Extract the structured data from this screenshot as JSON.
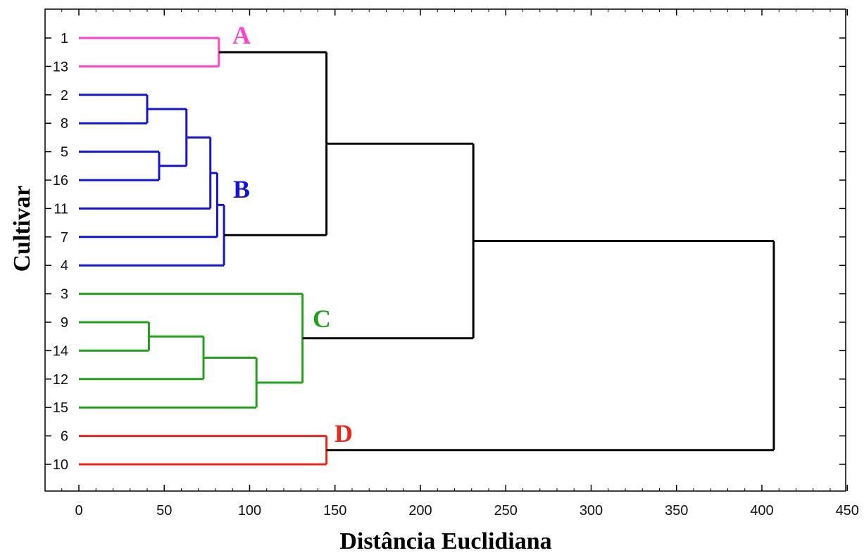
{
  "chart_data": {
    "type": "dendrogram",
    "orientation": "horizontal",
    "xlabel": "Distância Euclidiana",
    "ylabel": "Cultivar",
    "xlim": [
      -20,
      450
    ],
    "xticks": [
      0,
      50,
      100,
      150,
      200,
      250,
      300,
      350,
      400,
      450
    ],
    "leaves": [
      "1",
      "13",
      "2",
      "8",
      "5",
      "16",
      "11",
      "7",
      "4",
      "3",
      "9",
      "14",
      "12",
      "15",
      "6",
      "10"
    ],
    "colors": {
      "A": "#ff44cc",
      "B": "#1414d2",
      "C": "#22a01c",
      "D": "#e8281c",
      "link": "#000000"
    },
    "merges": [
      {
        "children": [
          "2",
          "8"
        ],
        "height": 40,
        "cluster": "B"
      },
      {
        "children": [
          "5",
          "16"
        ],
        "height": 47,
        "cluster": "B"
      },
      {
        "children": [
          "9",
          "14"
        ],
        "height": 41,
        "cluster": "C"
      },
      {
        "children": [
          "2-8",
          "5-16"
        ],
        "height": 63,
        "cluster": "B"
      },
      {
        "children": [
          "2-8-5-16",
          "11"
        ],
        "height": 77,
        "cluster": "B"
      },
      {
        "children": [
          "B1",
          "7"
        ],
        "height": 81,
        "cluster": "B"
      },
      {
        "children": [
          "B2",
          "4"
        ],
        "height": 85,
        "cluster": "B"
      },
      {
        "children": [
          "1",
          "13"
        ],
        "height": 82,
        "cluster": "A"
      },
      {
        "children": [
          "9-14",
          "12"
        ],
        "height": 73,
        "cluster": "C"
      },
      {
        "children": [
          "C1",
          "15"
        ],
        "height": 104,
        "cluster": "C"
      },
      {
        "children": [
          "3",
          "C2"
        ],
        "height": 131,
        "cluster": "C"
      },
      {
        "children": [
          "6",
          "10"
        ],
        "height": 145,
        "cluster": "D"
      },
      {
        "children": [
          "A",
          "B"
        ],
        "height": 145,
        "cluster": "link"
      },
      {
        "children": [
          "AB",
          "C"
        ],
        "height": 231,
        "cluster": "link"
      },
      {
        "children": [
          "ABC",
          "D"
        ],
        "height": 407,
        "cluster": "link"
      }
    ],
    "cluster_labels": [
      {
        "text": "A",
        "cluster": "A",
        "near": "1-13"
      },
      {
        "text": "B",
        "cluster": "B",
        "near": "B-root"
      },
      {
        "text": "C",
        "cluster": "C",
        "near": "C-root"
      },
      {
        "text": "D",
        "cluster": "D",
        "near": "6-10"
      }
    ],
    "grid": false,
    "legend": "none"
  }
}
